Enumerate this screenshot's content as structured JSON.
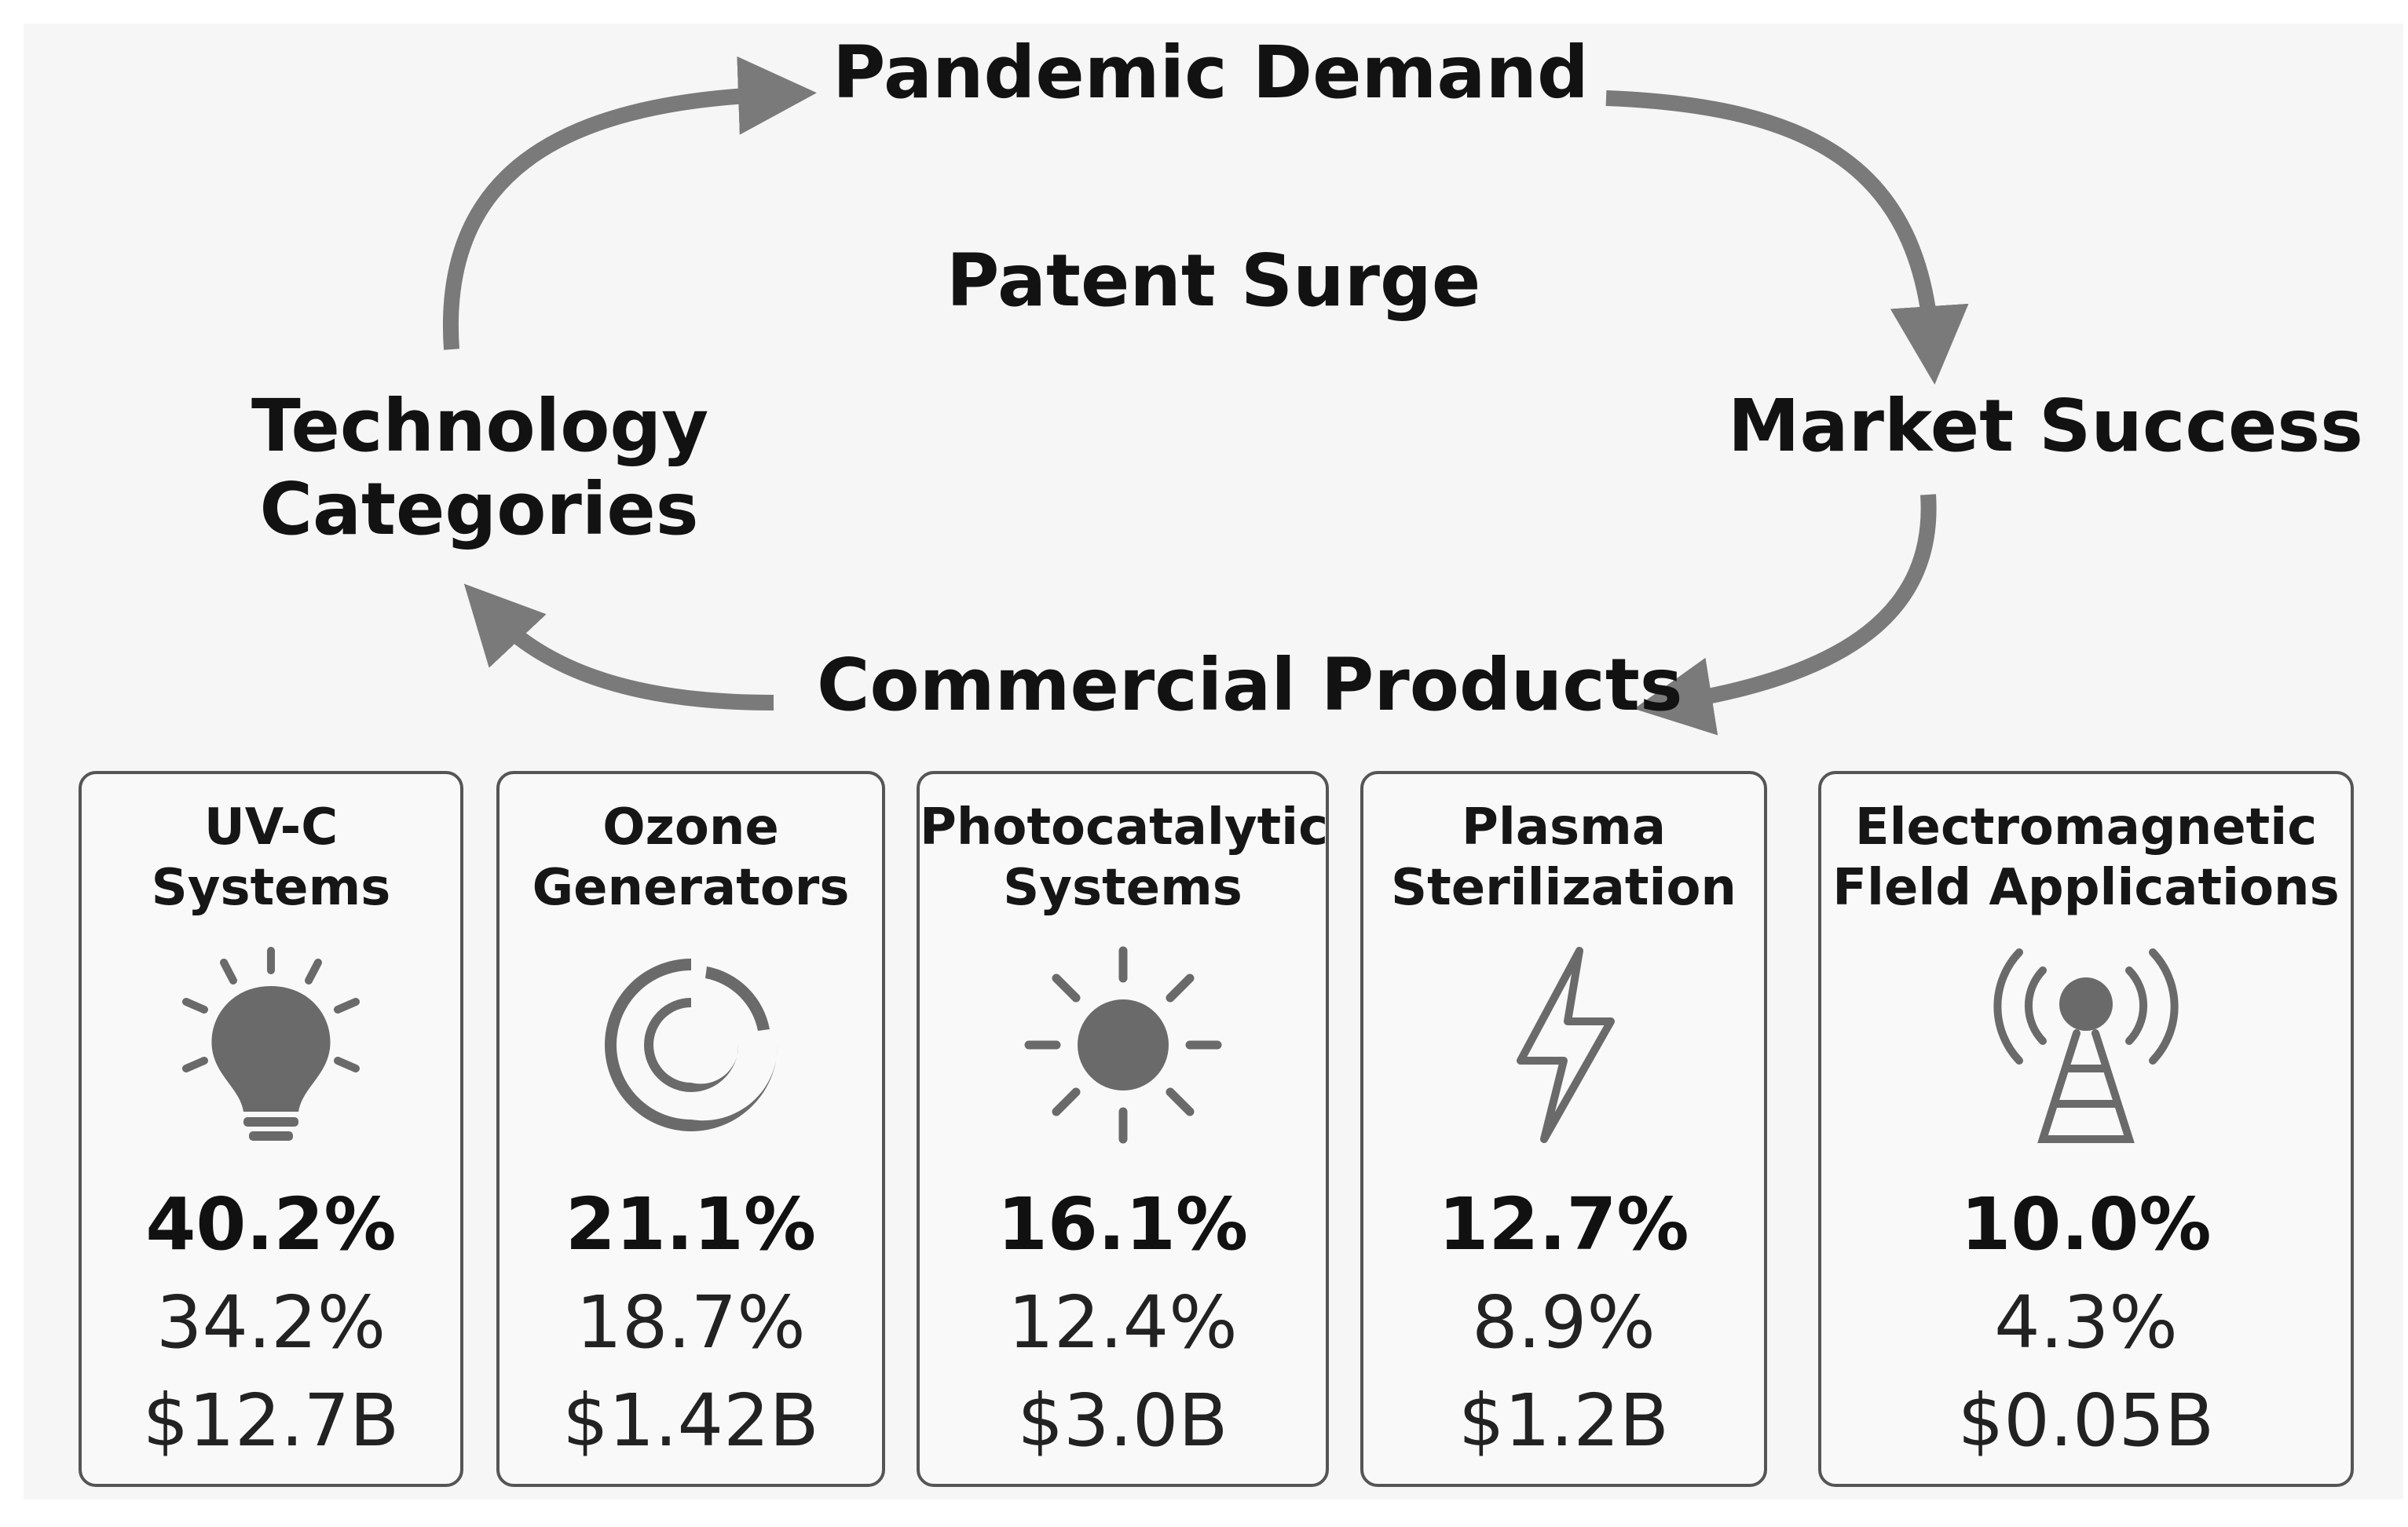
{
  "cycle": {
    "pandemic_demand": "Pandemic Demand",
    "patent_surge": "Patent Surge",
    "market_success": "Market Success",
    "technology_categories": "Technology\nCategories",
    "commercial_products": "Commercial Products"
  },
  "colors": {
    "arrow": "#7a7a7a",
    "icon": "#6a6a6a",
    "card_border": "#555555",
    "background": "#f6f6f6"
  },
  "cards": [
    {
      "title": "UV-C\nSystems",
      "icon": "lightbulb-icon",
      "pct": "40.2%",
      "sub": "34.2%",
      "value": "$12.7B"
    },
    {
      "title": "Ozone\nGenerators",
      "icon": "swirl-icon",
      "pct": "21.1%",
      "sub": "18.7%",
      "value": "$1.42B"
    },
    {
      "title": "Photocatalytic\nSystems",
      "icon": "sun-icon",
      "pct": "16.1%",
      "sub": "12.4%",
      "value": "$3.0B"
    },
    {
      "title": "Plasma\nSterilization",
      "icon": "lightning-bolt-icon",
      "pct": "12.7%",
      "sub": "8.9%",
      "value": "$1.2B"
    },
    {
      "title": "Electromagnetic\nFleld Applications",
      "icon": "radio-tower-icon",
      "pct": "10.0%",
      "sub": "4.3%",
      "value": "$0.05B"
    }
  ]
}
